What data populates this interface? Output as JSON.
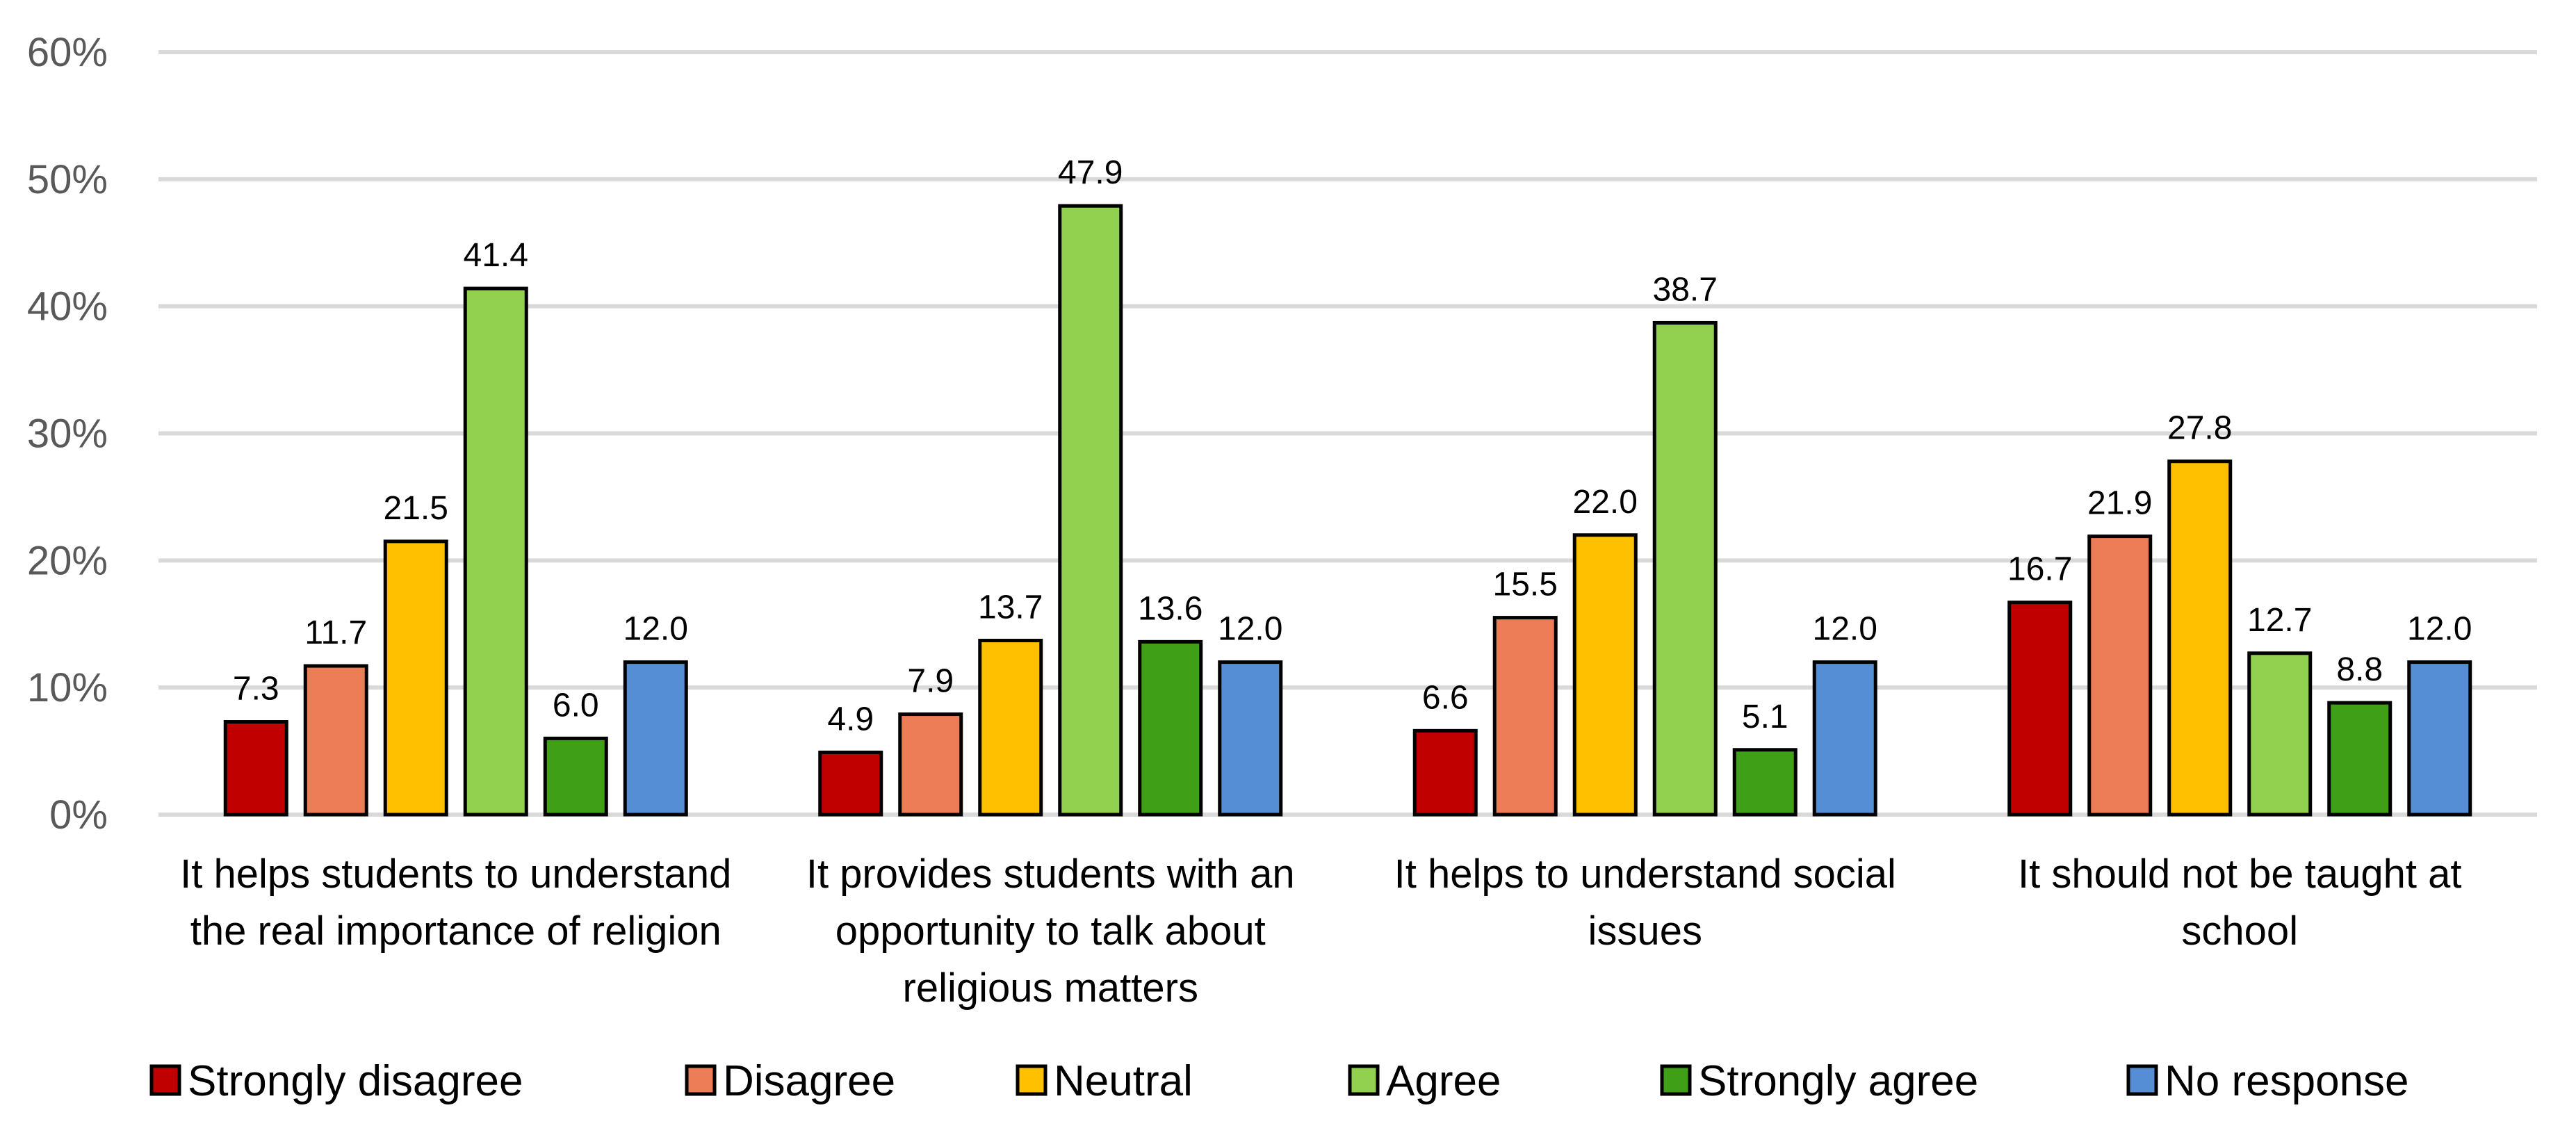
{
  "chart_data": {
    "type": "bar",
    "title": "",
    "xlabel": "",
    "ylabel": "",
    "ylim": [
      0,
      60
    ],
    "y_ticks": [
      "0%",
      "10%",
      "20%",
      "30%",
      "40%",
      "50%",
      "60%"
    ],
    "grid": true,
    "legend_position": "bottom",
    "categories": [
      [
        "It helps students to understand",
        "the real importance of religion"
      ],
      [
        "It provides students with an",
        "opportunity to talk about",
        "religious matters"
      ],
      [
        "It helps to understand social",
        "issues"
      ],
      [
        "It should not be taught at",
        "school"
      ]
    ],
    "series": [
      {
        "name": "Strongly disagree",
        "color": "#c00000",
        "values": [
          7.3,
          4.9,
          6.6,
          16.7
        ],
        "labels": [
          "7.3",
          "4.9",
          "6.6",
          "16.7"
        ]
      },
      {
        "name": "Disagree",
        "color": "#ed7d57",
        "values": [
          11.7,
          7.9,
          15.5,
          21.9
        ],
        "labels": [
          "11.7",
          "7.9",
          "15.5",
          "21.9"
        ]
      },
      {
        "name": "Neutral",
        "color": "#ffc000",
        "values": [
          21.5,
          13.7,
          22.0,
          27.8
        ],
        "labels": [
          "21.5",
          "13.7",
          "22.0",
          "27.8"
        ]
      },
      {
        "name": "Agree",
        "color": "#92d050",
        "values": [
          41.4,
          47.9,
          38.7,
          12.7
        ],
        "labels": [
          "41.4",
          "47.9",
          "38.7",
          "12.7"
        ]
      },
      {
        "name": "Strongly agree",
        "color": "#3fa018",
        "values": [
          6.0,
          13.6,
          5.1,
          8.8
        ],
        "labels": [
          "6.0",
          "13.6",
          "5.1",
          "8.8"
        ]
      },
      {
        "name": "No response",
        "color": "#558ed5",
        "values": [
          12.0,
          12.0,
          12.0,
          12.0
        ],
        "labels": [
          "12.0",
          "12.0",
          "12.0",
          "12.0"
        ]
      }
    ]
  }
}
